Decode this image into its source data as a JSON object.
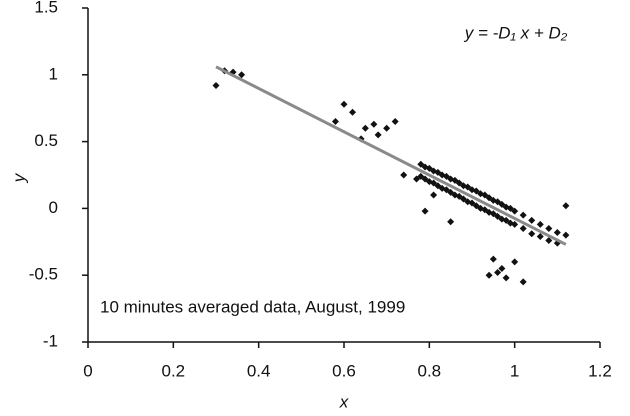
{
  "chart_data": {
    "type": "scatter",
    "xlabel": "x",
    "ylabel": "y",
    "annotations": [
      "y = -D₁ x + D₂",
      "10 minutes averaged data, August, 1999"
    ],
    "xlim": [
      0,
      1.2
    ],
    "xticks": [
      0,
      0.2,
      0.4,
      0.6,
      0.8,
      1,
      1.2
    ],
    "ylim": [
      -1,
      1.5
    ],
    "yticks": [
      -1,
      -0.5,
      0,
      0.5,
      1,
      1.5
    ],
    "series": [
      {
        "type": "scatter",
        "color": "#111111",
        "x": [
          0.3,
          0.32,
          0.34,
          0.36,
          0.6,
          0.62,
          0.58,
          0.65,
          0.67,
          0.7,
          0.72,
          0.64,
          0.68,
          0.74,
          0.77,
          0.95,
          0.97,
          1.0,
          0.94,
          0.98,
          1.02,
          0.96,
          1.12,
          0.81,
          0.79,
          0.85,
          0.78,
          0.78,
          0.79,
          0.79,
          0.8,
          0.8,
          0.81,
          0.81,
          0.82,
          0.82,
          0.83,
          0.83,
          0.84,
          0.84,
          0.85,
          0.85,
          0.86,
          0.86,
          0.87,
          0.87,
          0.88,
          0.88,
          0.89,
          0.89,
          0.9,
          0.9,
          0.91,
          0.91,
          0.92,
          0.92,
          0.93,
          0.93,
          0.94,
          0.94,
          0.95,
          0.95,
          0.96,
          0.96,
          0.97,
          0.97,
          0.98,
          0.98,
          0.99,
          0.99,
          1.0,
          1.0,
          1.02,
          1.02,
          1.04,
          1.04,
          1.06,
          1.06,
          1.08,
          1.08,
          1.1,
          1.1,
          1.12
        ],
        "values": [
          0.92,
          1.03,
          1.02,
          1.0,
          0.78,
          0.72,
          0.65,
          0.6,
          0.63,
          0.6,
          0.65,
          0.52,
          0.55,
          0.25,
          0.22,
          -0.38,
          -0.45,
          -0.4,
          -0.5,
          -0.52,
          -0.55,
          -0.48,
          0.02,
          0.1,
          -0.02,
          -0.1,
          0.33,
          0.24,
          0.31,
          0.22,
          0.3,
          0.2,
          0.28,
          0.19,
          0.27,
          0.17,
          0.25,
          0.15,
          0.24,
          0.14,
          0.22,
          0.12,
          0.21,
          0.1,
          0.19,
          0.09,
          0.17,
          0.07,
          0.16,
          0.05,
          0.14,
          0.04,
          0.13,
          0.02,
          0.11,
          0.0,
          0.1,
          -0.01,
          0.08,
          -0.03,
          0.06,
          -0.04,
          0.05,
          -0.06,
          0.03,
          -0.08,
          0.01,
          -0.09,
          0.0,
          -0.11,
          -0.02,
          -0.12,
          -0.05,
          -0.15,
          -0.09,
          -0.19,
          -0.12,
          -0.21,
          -0.15,
          -0.24,
          -0.18,
          -0.26,
          -0.2
        ]
      },
      {
        "type": "line",
        "color": "#8a8a8a",
        "x": [
          0.3,
          1.12
        ],
        "values": [
          1.06,
          -0.27
        ]
      }
    ]
  }
}
